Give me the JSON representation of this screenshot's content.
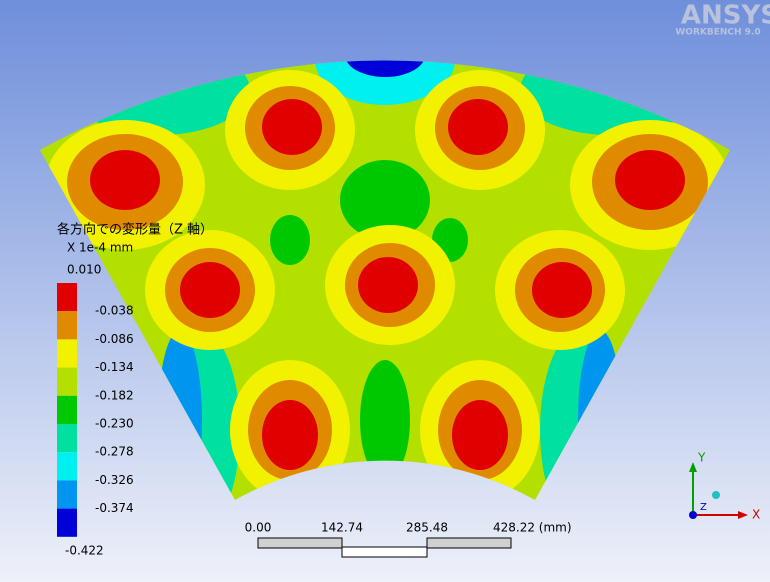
{
  "logo": {
    "brand": "ANSYS",
    "product": "WORKBENCH 9.0"
  },
  "legend": {
    "title": "各方向での変形量（Z 軸）",
    "units": "X 1e-4 mm",
    "levels": [
      "0.010",
      "-0.038",
      "-0.086",
      "-0.134",
      "-0.182",
      "-0.230",
      "-0.278",
      "-0.326",
      "-0.374",
      "-0.422"
    ],
    "colors": [
      "#e00000",
      "#e08a00",
      "#f2f200",
      "#b4e000",
      "#00c800",
      "#00e0a0",
      "#00f0f0",
      "#0096f0",
      "#0000d8"
    ]
  },
  "scale_bar": {
    "labels": [
      "0.00",
      "142.74",
      "285.48",
      "428.22 (mm)"
    ]
  },
  "triad": {
    "y": "Y",
    "z": "Z",
    "x": "X"
  }
}
